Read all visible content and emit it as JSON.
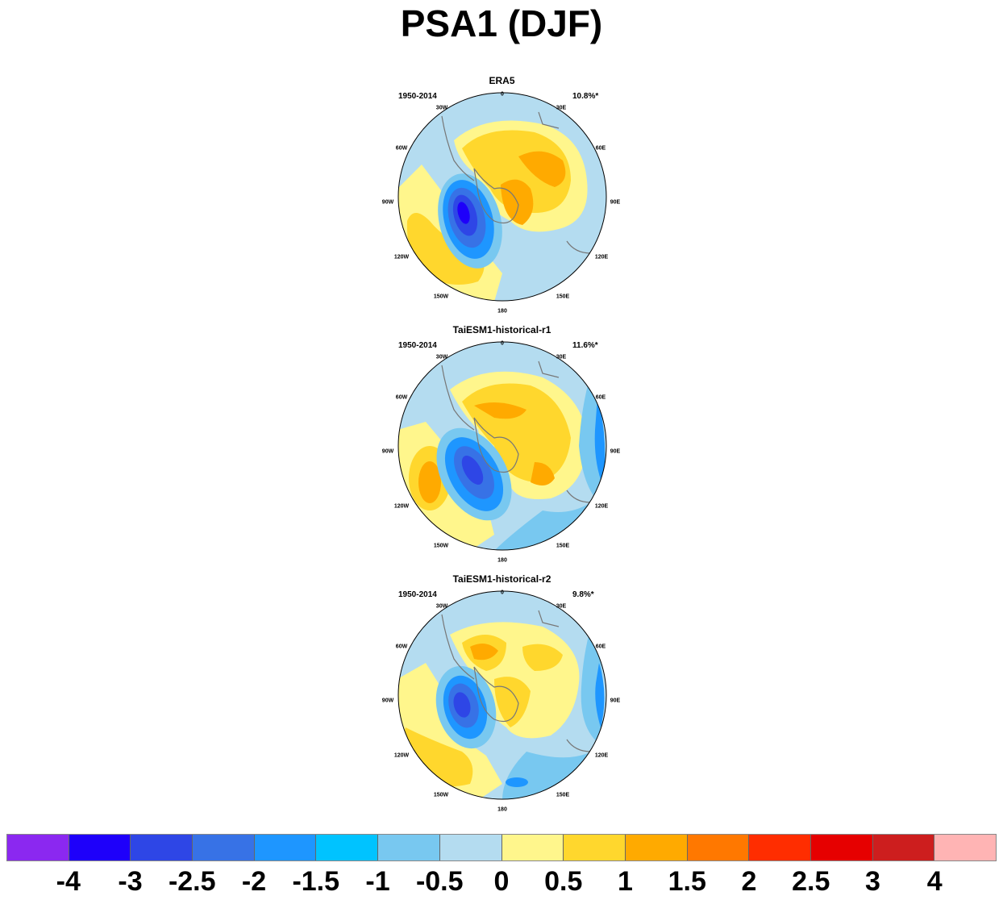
{
  "title": "PSA1 (DJF)",
  "panels": [
    {
      "name": "ERA5",
      "period": "1950-2014",
      "variance": "10.8%*"
    },
    {
      "name": "TaiESM1-historical-r1",
      "period": "1950-2014",
      "variance": "11.6%*"
    },
    {
      "name": "TaiESM1-historical-r2",
      "period": "1950-2014",
      "variance": "9.8%*"
    }
  ],
  "longitude_labels": [
    "0",
    "30E",
    "60E",
    "90E",
    "120E",
    "150E",
    "180",
    "150W",
    "120W",
    "90W",
    "60W",
    "30W"
  ],
  "colorbar": {
    "colors": [
      "#8b28f0",
      "#1e00fa",
      "#2e46e6",
      "#3772e6",
      "#1e96ff",
      "#00c3ff",
      "#78c8f0",
      "#b4dcf0",
      "#fff68c",
      "#ffd72d",
      "#ffaa00",
      "#ff7800",
      "#ff2d00",
      "#e60000",
      "#cd1e1e",
      "#ffb4b4"
    ],
    "labels": [
      "-4",
      "-3",
      "-2.5",
      "-2",
      "-1.5",
      "-1",
      "-0.5",
      "0",
      "0.5",
      "1",
      "1.5",
      "2",
      "2.5",
      "3",
      "4"
    ]
  }
}
